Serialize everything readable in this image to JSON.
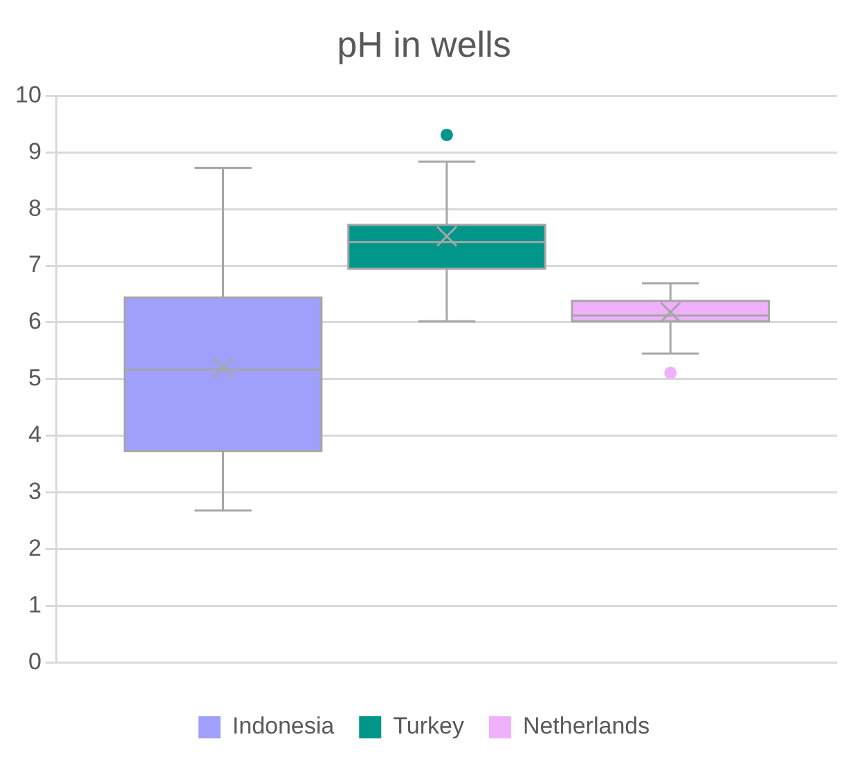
{
  "chart_data": {
    "type": "box",
    "title": "pH in wells",
    "categories": [
      null
    ],
    "series": [
      {
        "name": "Indonesia",
        "color": "#a0a0fc",
        "boxes": [
          {
            "low": 2.68,
            "q1": 3.73,
            "median": 5.17,
            "q3": 6.44,
            "high": 8.73,
            "mean": 5.2
          }
        ]
      },
      {
        "name": "Turkey",
        "color": "#00968a",
        "boxes": [
          {
            "low": 6.02,
            "q1": 6.95,
            "median": 7.42,
            "q3": 7.72,
            "high": 8.84,
            "mean": 7.52,
            "outliers": [
              9.31
            ]
          }
        ]
      },
      {
        "name": "Netherlands",
        "color": "#f0b0fc",
        "boxes": [
          {
            "low": 5.45,
            "q1": 6.02,
            "median": 6.12,
            "q3": 6.38,
            "high": 6.69,
            "mean": 6.18,
            "outliers": [
              5.11
            ]
          }
        ]
      }
    ],
    "ylim": [
      0,
      10
    ],
    "yticks": [
      0,
      1,
      2,
      3,
      4,
      5,
      6,
      7,
      8,
      9,
      10
    ],
    "grid": "y",
    "legend": "bottom"
  }
}
